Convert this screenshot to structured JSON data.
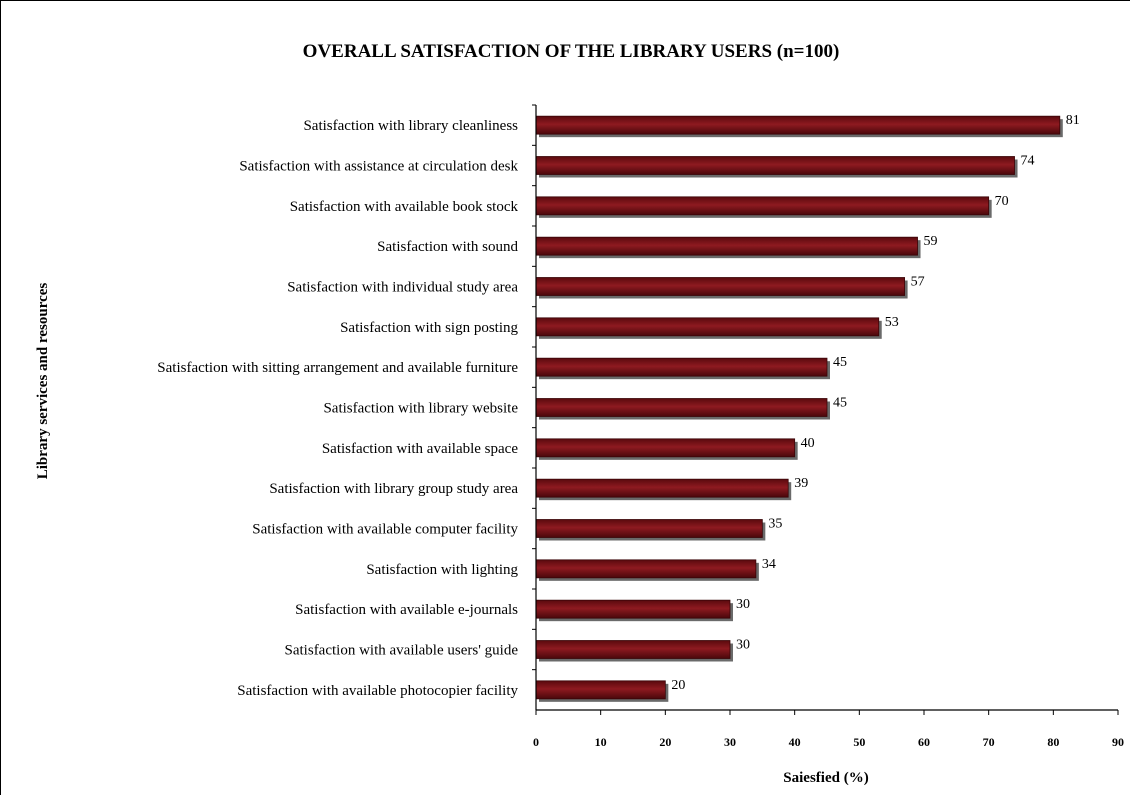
{
  "chart_data": {
    "type": "bar",
    "orientation": "horizontal",
    "title": "OVERALL  SATISFACTION OF THE LIBRARY USERS (n=100)",
    "xlabel": "Saiesfied (%)",
    "ylabel": "Library services and resources",
    "xlim": [
      0,
      90
    ],
    "xticks": [
      0,
      10,
      20,
      30,
      40,
      50,
      60,
      70,
      80,
      90
    ],
    "grid": false,
    "bar_color": "#7B0F14",
    "categories": [
      "Satisfaction with library cleanliness",
      "Satisfaction with assistance at circulation desk",
      "Satisfaction with available book stock",
      "Satisfaction with  sound",
      "Satisfaction with  individual study area",
      "Satisfaction with sign posting",
      "Satisfaction with sitting arrangement and available furniture",
      "Satisfaction with library website",
      "Satisfaction with available space",
      "Satisfaction with library group study area",
      "Satisfaction with available computer facility",
      "Satisfaction with lighting",
      "Satisfaction with available e-journals",
      "Satisfaction with available users' guide",
      "Satisfaction with available photocopier facility"
    ],
    "values": [
      81,
      74,
      70,
      59,
      57,
      53,
      45,
      45,
      40,
      39,
      35,
      34,
      30,
      30,
      20
    ]
  }
}
